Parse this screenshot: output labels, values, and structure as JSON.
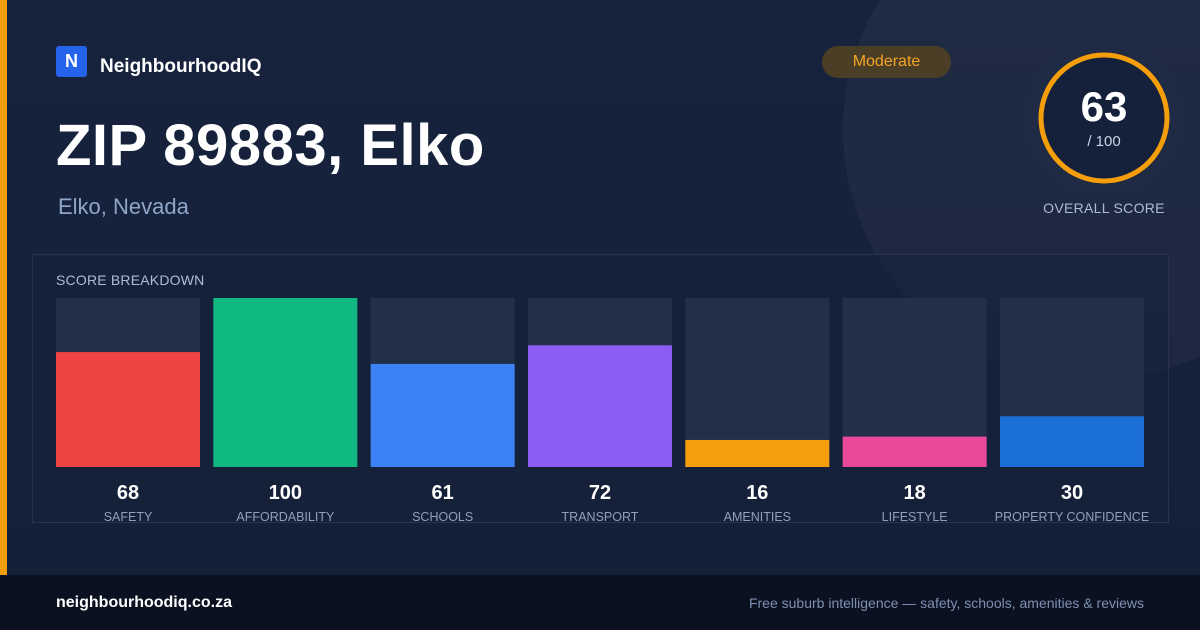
{
  "brand": {
    "logo_letter": "N",
    "name": "NeighbourhoodIQ"
  },
  "header": {
    "title": "ZIP 89883, Elko",
    "subtitle": "Elko, Nevada"
  },
  "badge": {
    "label": "Moderate"
  },
  "overall": {
    "score": "63",
    "max": "/ 100",
    "label": "OVERALL SCORE",
    "value": 63,
    "ring_color": "#f59e0b"
  },
  "chart_data": {
    "type": "bar",
    "title": "SCORE BREAKDOWN",
    "ylim": [
      0,
      100
    ],
    "categories": [
      "SAFETY",
      "AFFORDABILITY",
      "SCHOOLS",
      "TRANSPORT",
      "AMENITIES",
      "LIFESTYLE",
      "PROPERTY CONFIDENCE"
    ],
    "values": [
      68,
      100,
      61,
      72,
      16,
      18,
      30
    ],
    "colors": [
      "#ef4444",
      "#10b981",
      "#3b82f6",
      "#8b5cf6",
      "#f59e0b",
      "#ec4899",
      "#1d6fd8"
    ],
    "track_color": "#232f48",
    "grid": false
  },
  "footer": {
    "url": "neighbourhoodiq.co.za",
    "tagline": "Free suburb intelligence — safety, schools, amenities & reviews"
  }
}
